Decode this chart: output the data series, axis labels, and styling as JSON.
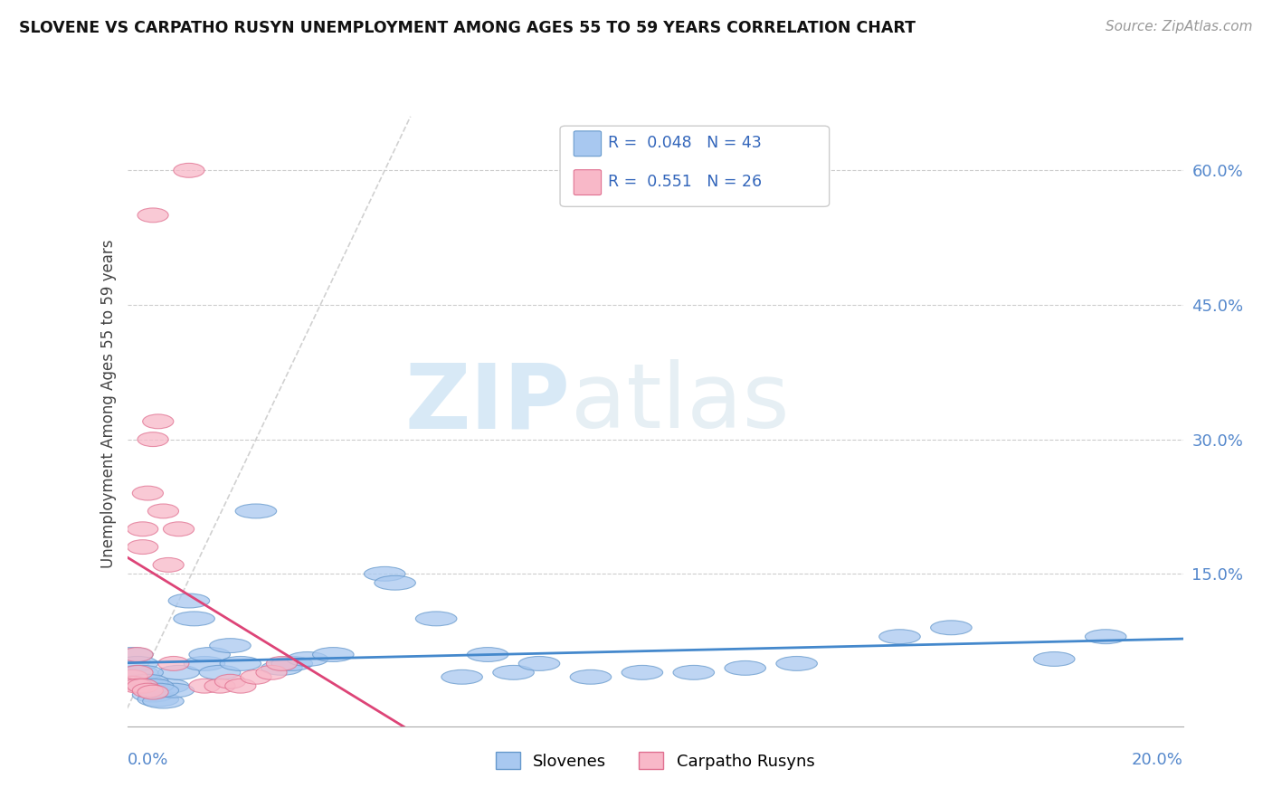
{
  "title": "SLOVENE VS CARPATHO RUSYN UNEMPLOYMENT AMONG AGES 55 TO 59 YEARS CORRELATION CHART",
  "source": "Source: ZipAtlas.com",
  "ylabel": "Unemployment Among Ages 55 to 59 years",
  "xlim": [
    0.0,
    0.205
  ],
  "ylim": [
    -0.02,
    0.7
  ],
  "yticks": [
    0.0,
    0.15,
    0.3,
    0.45,
    0.6
  ],
  "ytick_labels": [
    "",
    "15.0%",
    "30.0%",
    "45.0%",
    "60.0%"
  ],
  "xtick_left": "0.0%",
  "xtick_right": "20.0%",
  "legend_blue_r": "0.048",
  "legend_blue_n": "43",
  "legend_pink_r": "0.551",
  "legend_pink_n": "26",
  "legend_label_blue": "Slovenes",
  "legend_label_pink": "Carpatho Rusyns",
  "blue_fill": "#a8c8f0",
  "blue_edge": "#6699cc",
  "pink_fill": "#f8b8c8",
  "pink_edge": "#e07090",
  "blue_trend_color": "#4488cc",
  "pink_trend_color": "#dd4477",
  "dash_color": "#cccccc",
  "watermark_zip": "ZIP",
  "watermark_atlas": "atlas",
  "slovene_x": [
    0.001,
    0.002,
    0.003,
    0.004,
    0.005,
    0.006,
    0.007,
    0.008,
    0.009,
    0.01,
    0.012,
    0.013,
    0.015,
    0.016,
    0.018,
    0.02,
    0.022,
    0.025,
    0.03,
    0.032,
    0.035,
    0.04,
    0.05,
    0.052,
    0.06,
    0.065,
    0.07,
    0.075,
    0.08,
    0.09,
    0.1,
    0.11,
    0.12,
    0.13,
    0.15,
    0.16,
    0.18,
    0.19,
    0.002,
    0.003,
    0.004,
    0.005,
    0.006
  ],
  "slovene_y": [
    0.06,
    0.04,
    0.03,
    0.025,
    0.015,
    0.01,
    0.008,
    0.025,
    0.02,
    0.04,
    0.12,
    0.1,
    0.05,
    0.06,
    0.04,
    0.07,
    0.05,
    0.22,
    0.045,
    0.05,
    0.055,
    0.06,
    0.15,
    0.14,
    0.1,
    0.035,
    0.06,
    0.04,
    0.05,
    0.035,
    0.04,
    0.04,
    0.045,
    0.05,
    0.08,
    0.09,
    0.055,
    0.08,
    0.05,
    0.04,
    0.03,
    0.025,
    0.02
  ],
  "rusyn_x": [
    0.001,
    0.001,
    0.002,
    0.002,
    0.003,
    0.003,
    0.004,
    0.005,
    0.005,
    0.006,
    0.007,
    0.008,
    0.009,
    0.01,
    0.012,
    0.015,
    0.018,
    0.02,
    0.022,
    0.025,
    0.028,
    0.03,
    0.002,
    0.003,
    0.004,
    0.005
  ],
  "rusyn_y": [
    0.035,
    0.028,
    0.06,
    0.04,
    0.2,
    0.18,
    0.24,
    0.55,
    0.3,
    0.32,
    0.22,
    0.16,
    0.05,
    0.2,
    0.6,
    0.025,
    0.025,
    0.03,
    0.025,
    0.035,
    0.04,
    0.05,
    0.025,
    0.025,
    0.02,
    0.018
  ]
}
